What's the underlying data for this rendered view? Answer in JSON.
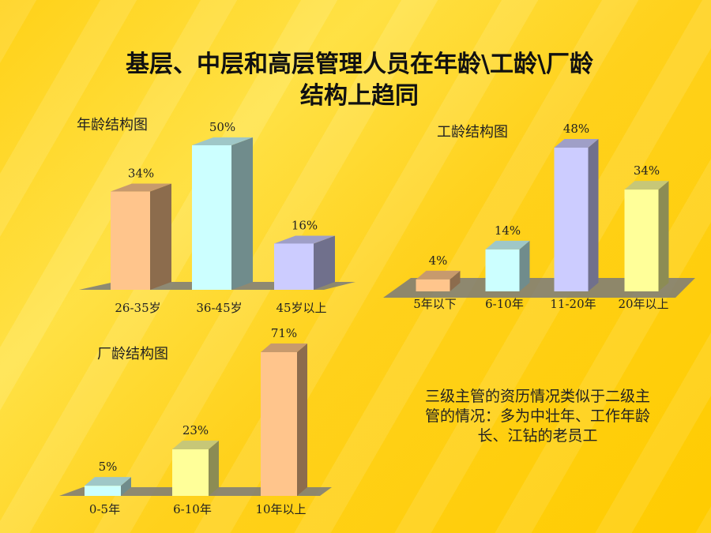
{
  "title": {
    "line1": "基层、中层和高层管理人员在年龄\\工龄\\厂龄",
    "line2": "结构上趋同"
  },
  "chart_data": [
    {
      "type": "bar",
      "title": "年龄结构图",
      "categories": [
        "26-35岁",
        "36-45岁",
        "45岁以上"
      ],
      "values": [
        34,
        50,
        16
      ],
      "labels": [
        "34%",
        "50%",
        "16%"
      ],
      "colors": [
        "#FFC58C",
        "#CCFFFF",
        "#CCCCFF"
      ],
      "ylim": [
        0,
        50
      ],
      "grid": false,
      "legend": false
    },
    {
      "type": "bar",
      "title": "工龄结构图",
      "categories": [
        "5年以下",
        "6-10年",
        "11-20年",
        "20年以上"
      ],
      "values": [
        4,
        14,
        48,
        34
      ],
      "labels": [
        "4%",
        "14%",
        "48%",
        "34%"
      ],
      "colors": [
        "#FFC58C",
        "#CCFFFF",
        "#CCCCFF",
        "#FFFF99"
      ],
      "ylim": [
        0,
        48
      ],
      "grid": false,
      "legend": false
    },
    {
      "type": "bar",
      "title": "厂龄结构图",
      "categories": [
        "0-5年",
        "6-10年",
        "10年以上"
      ],
      "values": [
        5,
        23,
        71
      ],
      "labels": [
        "5%",
        "23%",
        "71%"
      ],
      "colors": [
        "#CCFFFF",
        "#FFFF99",
        "#FFC58C"
      ],
      "ylim": [
        0,
        71
      ],
      "grid": false,
      "legend": false
    }
  ],
  "note": "三级主管的资历情况类似于二级主管的情况：多为中壮年、工作年龄长、江钻的老员工"
}
